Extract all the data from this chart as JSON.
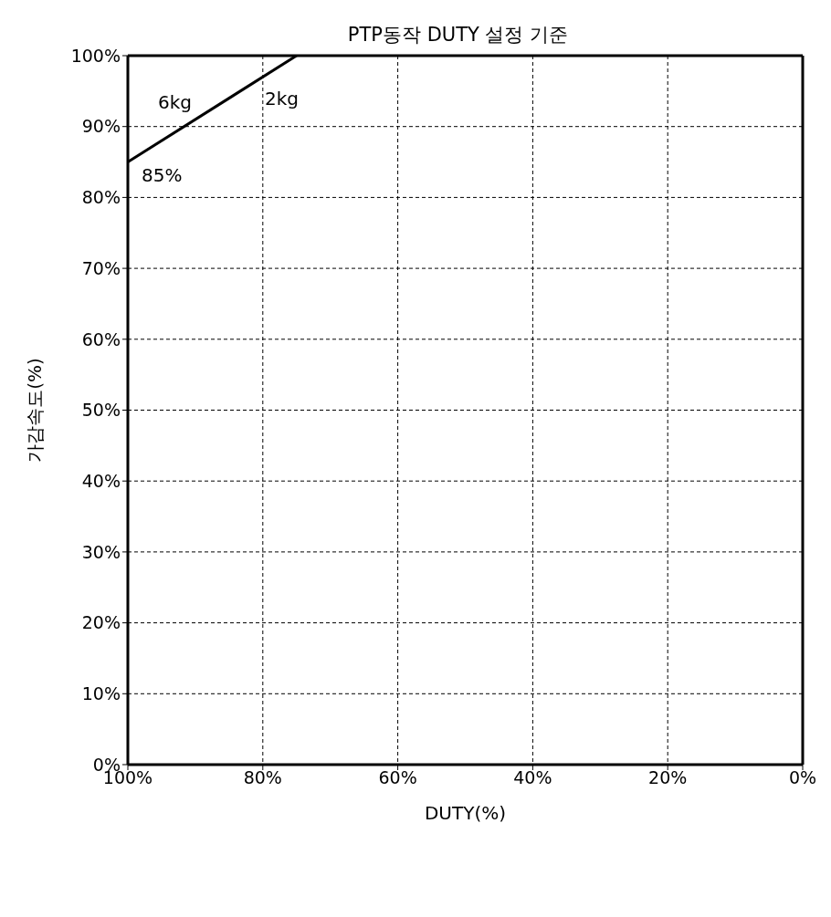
{
  "chart_data": {
    "type": "line",
    "title": "PTP동작 DUTY 설정 기준",
    "xlabel": "DUTY(%)",
    "ylabel": "가감속도(%)",
    "series": [
      {
        "color": "#000000",
        "x": [
          100,
          75
        ],
        "values": [
          85,
          100
        ]
      }
    ],
    "xlim": [
      100,
      0
    ],
    "xticks": [
      {
        "value": 100,
        "label": "100%"
      },
      {
        "value": 80,
        "label": "80%"
      },
      {
        "value": 60,
        "label": "60%"
      },
      {
        "value": 40,
        "label": "40%"
      },
      {
        "value": 20,
        "label": "20%"
      },
      {
        "value": 0,
        "label": "0%"
      }
    ],
    "ylim": [
      0,
      100
    ],
    "yticks": [
      {
        "value": 0,
        "label": "0%"
      },
      {
        "value": 10,
        "label": "10%"
      },
      {
        "value": 20,
        "label": "20%"
      },
      {
        "value": 30,
        "label": "30%"
      },
      {
        "value": 40,
        "label": "40%"
      },
      {
        "value": 50,
        "label": "50%"
      },
      {
        "value": 60,
        "label": "60%"
      },
      {
        "value": 70,
        "label": "70%"
      },
      {
        "value": 80,
        "label": "80%"
      },
      {
        "value": 90,
        "label": "90%"
      },
      {
        "value": 100,
        "label": "100%"
      }
    ],
    "annotations": [
      "6kg",
      "2kg",
      "85%"
    ],
    "grid": true,
    "marker": "none",
    "line_style": "solid"
  }
}
